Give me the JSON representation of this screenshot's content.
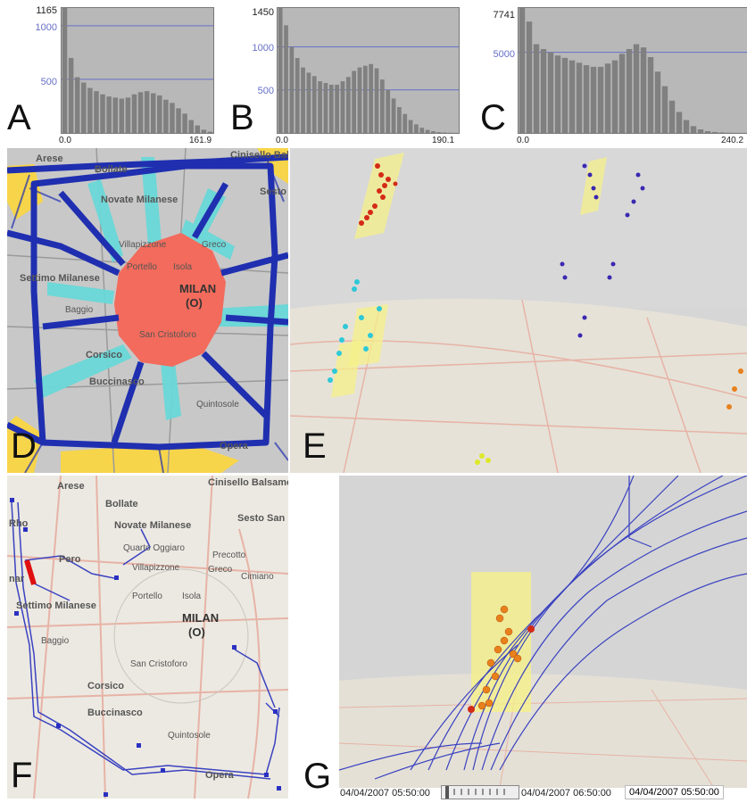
{
  "panels": {
    "A": {
      "letter": "A",
      "ymax_label": "1165",
      "grid_labels": [
        "1000",
        "500"
      ],
      "x_min": "0.0",
      "x_max": "161.9"
    },
    "B": {
      "letter": "B",
      "ymax_label": "1450",
      "grid_labels": [
        "1000",
        "500"
      ],
      "x_min": "0.0",
      "x_max": "190.1"
    },
    "C": {
      "letter": "C",
      "ymax_label": "7741",
      "grid_labels": [
        "5000"
      ],
      "x_min": "0.0",
      "x_max": "240.2"
    },
    "D": {
      "letter": "D"
    },
    "E": {
      "letter": "E"
    },
    "F": {
      "letter": "F"
    },
    "G": {
      "letter": "G"
    }
  },
  "map_labels": {
    "arese": "Arese",
    "bollate": "Bollate",
    "cinisello": "Cinisello Balsamo",
    "novate": "Novate Milanese",
    "sesto": "Sesto San",
    "quarto": "Quarto Oggiaro",
    "precotto": "Precotto",
    "villapizzone": "Villapizzone",
    "greco": "Greco",
    "cimiano": "Cimiano",
    "portello": "Portello",
    "isola": "Isola",
    "rho": "Rho",
    "pero": "Pero",
    "settimo": "Settimo Milanese",
    "milan": "MILAN",
    "milan_sub": "(O)",
    "baggio": "Baggio",
    "sancristoforo": "San Cristoforo",
    "corsico": "Corsico",
    "buccinasco": "Buccinasco",
    "quintosole": "Quintosole",
    "opera": "Opera",
    "nar": "nar"
  },
  "timeline": {
    "start": "04/04/2007 05:50:00",
    "end": "04/04/2007 06:50:00",
    "current": "04/04/2007 05:50:00"
  },
  "chart_data": [
    {
      "type": "bar",
      "name_ref": "A",
      "ylim": [
        0,
        1165
      ],
      "xlim": [
        0.0,
        161.9
      ],
      "values": [
        1165,
        700,
        520,
        470,
        420,
        390,
        360,
        340,
        330,
        320,
        330,
        360,
        380,
        390,
        370,
        350,
        310,
        280,
        230,
        180,
        120,
        70,
        30,
        12
      ]
    },
    {
      "type": "bar",
      "name_ref": "B",
      "ylim": [
        0,
        1450
      ],
      "xlim": [
        0.0,
        190.1
      ],
      "values": [
        1450,
        1250,
        1000,
        870,
        760,
        700,
        660,
        600,
        580,
        560,
        560,
        600,
        650,
        720,
        760,
        780,
        800,
        750,
        620,
        500,
        400,
        300,
        220,
        150,
        100,
        60,
        35,
        20,
        10,
        6,
        3,
        2
      ]
    },
    {
      "type": "bar",
      "name_ref": "C",
      "ylim": [
        0,
        7741
      ],
      "xlim": [
        0.0,
        240.2
      ],
      "values": [
        7741,
        6900,
        5500,
        5200,
        5000,
        4800,
        4650,
        4500,
        4350,
        4200,
        4100,
        4100,
        4300,
        4500,
        4900,
        5200,
        5500,
        5300,
        4700,
        3800,
        2900,
        2000,
        1300,
        800,
        420,
        220,
        110,
        60,
        30,
        15,
        8,
        4
      ]
    }
  ],
  "colors": {
    "hist_bar": "#808080",
    "hist_bg": "#b8b8b8",
    "grid": "#6670c8",
    "road_blue": "#1f2fb0",
    "zone_red": "#f26b5c",
    "zone_cyan": "#6ad8d8",
    "zone_yellow": "#f7d54a",
    "map_bg": "#c9c9c9",
    "map_light": "#e9e6e0",
    "track_red": "#d42a18",
    "track_orange": "#e8801c"
  }
}
